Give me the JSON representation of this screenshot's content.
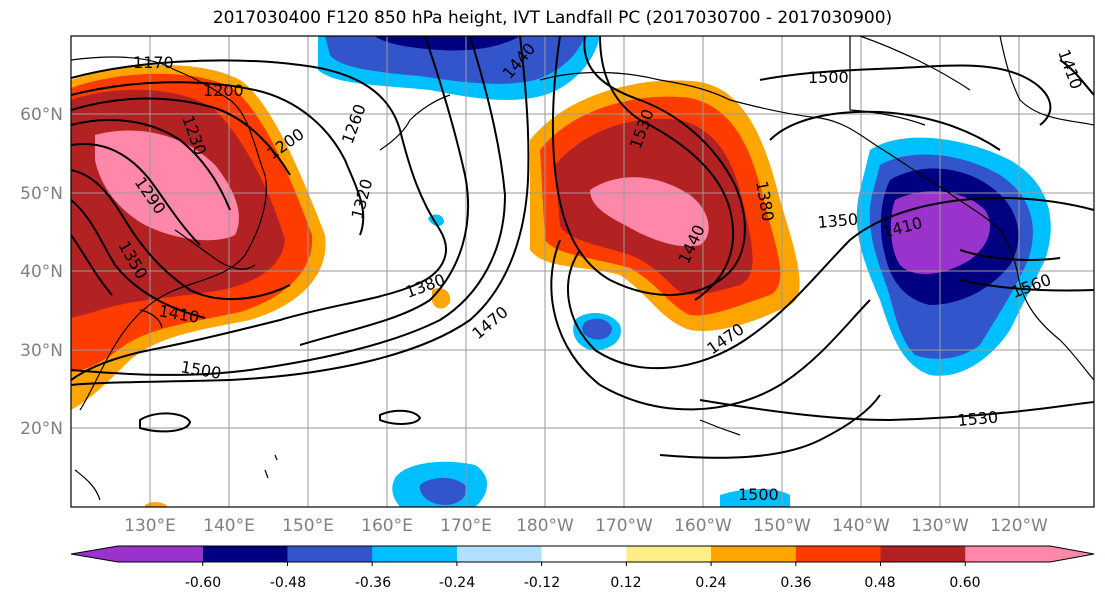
{
  "title": "2017030400 F120 850 hPa height, IVT Landfall PC (2017030700 - 2017030900)",
  "lat_labels": [
    "60°N",
    "50°N",
    "40°N",
    "30°N",
    "20°N"
  ],
  "lon_labels": [
    "130°E",
    "140°E",
    "150°E",
    "160°E",
    "170°E",
    "180°W",
    "170°W",
    "160°W",
    "150°W",
    "140°W",
    "130°W",
    "120°W"
  ],
  "contour_labels": [
    "1170",
    "1200",
    "1200",
    "1230",
    "1260",
    "1290",
    "1320",
    "1350",
    "1380",
    "1410",
    "1440",
    "1470",
    "1500",
    "1500",
    "1530",
    "1440",
    "1470",
    "1380",
    "1350",
    "1410",
    "1560",
    "1530",
    "1500",
    "1410"
  ],
  "colorbar": {
    "ticks": [
      "-0.60",
      "-0.48",
      "-0.36",
      "-0.24",
      "-0.12",
      "0.12",
      "0.24",
      "0.36",
      "0.48",
      "0.60"
    ],
    "colors": [
      "#9933cc",
      "#000080",
      "#3355cc",
      "#00bfff",
      "#b0e0ff",
      "#ffffff",
      "#ffee88",
      "#ffa500",
      "#ff3c00",
      "#b22222",
      "#ff88aa"
    ]
  }
}
